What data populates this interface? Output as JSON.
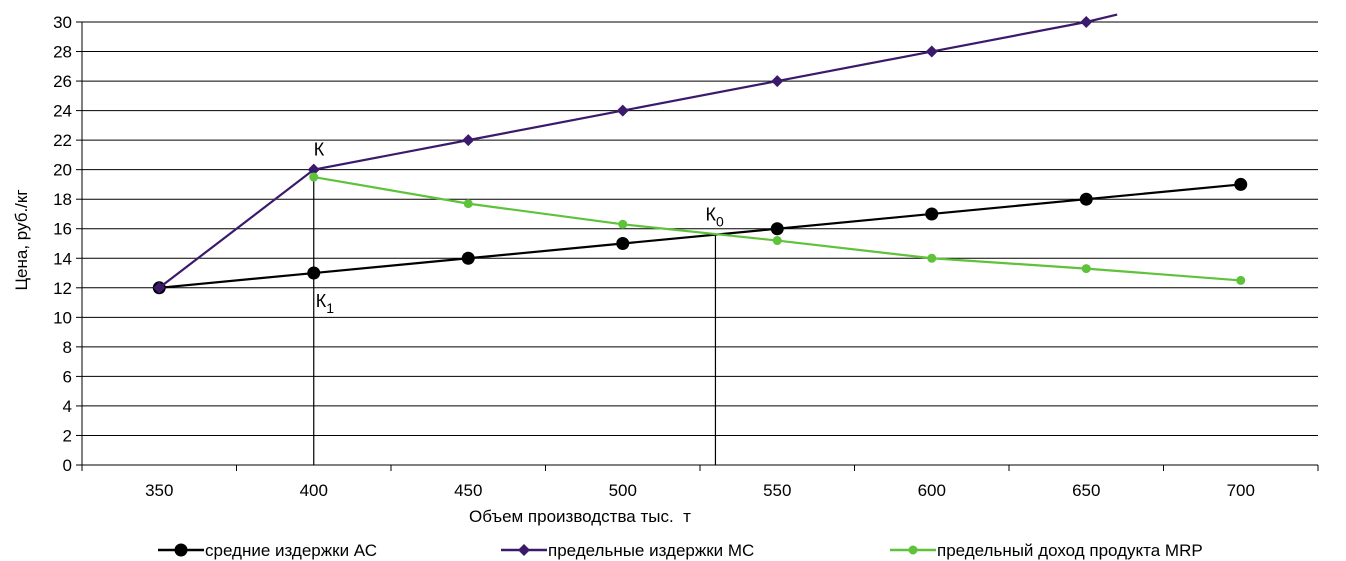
{
  "chart_data": {
    "type": "line",
    "xlabel": "Объем производства тыс.  т",
    "ylabel": "Цена, руб./кг",
    "x_categories": [
      "350",
      "400",
      "450",
      "500",
      "550",
      "600",
      "650",
      "700"
    ],
    "y_ticks": [
      "0",
      "2",
      "4",
      "6",
      "8",
      "10",
      "12",
      "14",
      "16",
      "18",
      "20",
      "22",
      "24",
      "26",
      "28",
      "30"
    ],
    "ylim": [
      0,
      30
    ],
    "grid": "horizontal",
    "legend_position": "bottom",
    "series": [
      {
        "name": "средние издержки АС",
        "color": "#000000",
        "marker": "circle",
        "points": [
          [
            350,
            12
          ],
          [
            400,
            13
          ],
          [
            450,
            14
          ],
          [
            500,
            15
          ],
          [
            550,
            16
          ],
          [
            600,
            17
          ],
          [
            650,
            18
          ],
          [
            700,
            19
          ]
        ]
      },
      {
        "name": "предельные издержки МС",
        "color": "#3b1a6b",
        "marker": "diamond",
        "points": [
          [
            350,
            12
          ],
          [
            400,
            20
          ],
          [
            450,
            22
          ],
          [
            500,
            24
          ],
          [
            550,
            26
          ],
          [
            600,
            28
          ],
          [
            650,
            30
          ]
        ],
        "extend_to": [
          660,
          30.5
        ]
      },
      {
        "name": "предельный доход продукта МRP",
        "color": "#5ec23a",
        "marker": "circle-small",
        "points": [
          [
            400,
            19.5
          ],
          [
            450,
            17.7
          ],
          [
            500,
            16.3
          ],
          [
            550,
            15.2
          ],
          [
            600,
            14
          ],
          [
            650,
            13.3
          ],
          [
            700,
            12.5
          ]
        ]
      }
    ],
    "annotations": [
      {
        "text": "К",
        "sub": "",
        "x": 400,
        "y": 20
      },
      {
        "text": "К",
        "sub": "1",
        "x": 400,
        "y": 13
      },
      {
        "text": "К",
        "sub": "0",
        "x": 530,
        "y": 15.6
      }
    ],
    "guide_lines": [
      {
        "x": 400,
        "y_from": 0,
        "y_to": 20
      },
      {
        "x": 530,
        "y_from": 0,
        "y_to": 15.6
      }
    ]
  }
}
